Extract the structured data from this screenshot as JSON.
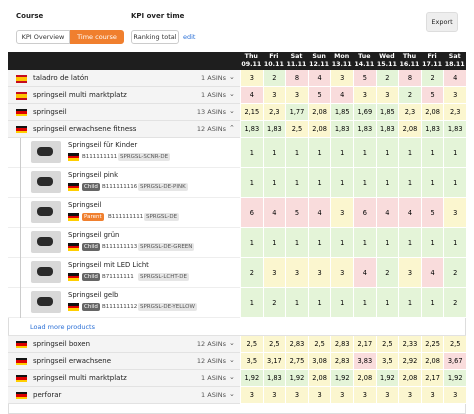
{
  "header": {
    "course_label": "Course",
    "tabs": [
      "KPI Overview",
      "Time course"
    ],
    "active_tab": 1,
    "kpi_label": "KPI over time",
    "kpi_value": "Ranking total",
    "edit": "edit",
    "export": "Export"
  },
  "table": {
    "columns": [
      {
        "day": "Thu",
        "date": "09.11"
      },
      {
        "day": "Fri",
        "date": "10.11"
      },
      {
        "day": "Sat",
        "date": "11.11"
      },
      {
        "day": "Sun",
        "date": "12.11"
      },
      {
        "day": "Mon",
        "date": "13.11"
      },
      {
        "day": "Tue",
        "date": "14.11"
      },
      {
        "day": "Wed",
        "date": "15.11"
      },
      {
        "day": "Thu",
        "date": "16.11"
      },
      {
        "day": "Fri",
        "date": "17.11"
      },
      {
        "day": "Sat",
        "date": "18.11"
      }
    ],
    "keywords": [
      {
        "flag": "es",
        "name": "taladro de latón",
        "asins": "1 ASINs",
        "values": [
          3,
          2,
          8,
          4,
          3,
          5,
          2,
          8,
          2,
          4
        ]
      },
      {
        "flag": "es",
        "name": "springseil multi marktplatz",
        "asins": "1 ASINs",
        "values": [
          4,
          3,
          3,
          5,
          4,
          3,
          3,
          2,
          5,
          3
        ]
      },
      {
        "flag": "de",
        "name": "springseil",
        "asins": "13 ASINs",
        "values": [
          2.15,
          2.3,
          1.77,
          2.08,
          1.85,
          1.69,
          1.85,
          2.3,
          2.08,
          2.3
        ],
        "value_labels": [
          "2,15",
          "2,3",
          "1,77",
          "2,08",
          "1,85",
          "1,69",
          "1,85",
          "2,3",
          "2,08",
          "2,3"
        ]
      },
      {
        "flag": "de",
        "name": "springseil erwachsene fitness",
        "asins": "12 ASINs",
        "expanded": true,
        "values": [
          1.83,
          1.83,
          2.5,
          2.08,
          1.83,
          1.83,
          1.83,
          2.08,
          1.83,
          1.83
        ],
        "value_labels": [
          "1,83",
          "1,83",
          "2,5",
          "2,08",
          "1,83",
          "1,83",
          "1,83",
          "2,08",
          "1,83",
          "1,83"
        ],
        "products": [
          {
            "name": "Springseil für Kinder",
            "asin": "B111111111",
            "sku": "SPRGSL-SCNR-DE",
            "values": [
              1,
              1,
              1,
              1,
              1,
              1,
              1,
              1,
              1,
              1
            ]
          },
          {
            "name": "Springseil pink",
            "badge": "Child",
            "asin": "B111111116",
            "sku": "SPRGSL-DE-PINK",
            "values": [
              1,
              1,
              1,
              1,
              1,
              1,
              1,
              1,
              1,
              1
            ]
          },
          {
            "name": "Springseil",
            "badge": "Parent",
            "asin": "B111111111",
            "sku": "SPRGSL-DE",
            "values": [
              6,
              4,
              5,
              4,
              3,
              6,
              4,
              4,
              5,
              3
            ]
          },
          {
            "name": "Springseil grün",
            "badge": "Child",
            "asin": "B111111113",
            "sku": "SPRGSL-DE-GREEN",
            "values": [
              1,
              1,
              1,
              1,
              1,
              1,
              1,
              1,
              1,
              1
            ]
          },
          {
            "name": "Springseil mit LED Licht",
            "badge": "Child",
            "asin": "B71111111",
            "sku": "SPRGSL-LCHT-DE",
            "values": [
              2,
              3,
              3,
              3,
              3,
              4,
              2,
              3,
              4,
              2
            ]
          },
          {
            "name": "Springseil gelb",
            "badge": "Child",
            "asin": "B111111112",
            "sku": "SPRGSL-DE-YELLOW",
            "values": [
              1,
              2,
              1,
              1,
              1,
              1,
              1,
              1,
              1,
              2
            ]
          }
        ]
      },
      {
        "flag": "de",
        "name": "springseil boxen",
        "asins": "12 ASINs",
        "values": [
          2.5,
          2.5,
          2.83,
          2.5,
          2.83,
          2.17,
          2.5,
          2.33,
          2.25,
          2.5
        ],
        "value_labels": [
          "2,5",
          "2,5",
          "2,83",
          "2,5",
          "2,83",
          "2,17",
          "2,5",
          "2,33",
          "2,25",
          "2,5"
        ]
      },
      {
        "flag": "de",
        "name": "springseil erwachsene",
        "asins": "12 ASINs",
        "values": [
          3.5,
          3.17,
          2.75,
          3.08,
          2.83,
          3.83,
          3.5,
          2.92,
          2.08,
          3.67
        ],
        "value_labels": [
          "3,5",
          "3,17",
          "2,75",
          "3,08",
          "2,83",
          "3,83",
          "3,5",
          "2,92",
          "2,08",
          "3,67"
        ]
      },
      {
        "flag": "de",
        "name": "springseil multi marktplatz",
        "asins": "1 ASINs",
        "values": [
          1.92,
          1.83,
          1.92,
          2.08,
          1.92,
          2.08,
          1.92,
          2.08,
          2.17,
          1.92
        ],
        "value_labels": [
          "1,92",
          "1,83",
          "1,92",
          "2,08",
          "1,92",
          "2,08",
          "1,92",
          "2,08",
          "2,17",
          "1,92"
        ]
      },
      {
        "flag": "de",
        "name": "perforar",
        "asins": "1 ASINs",
        "values": [
          3,
          3,
          3,
          3,
          3,
          3,
          3,
          3,
          3,
          3
        ]
      }
    ],
    "load_more": "Load more products"
  }
}
